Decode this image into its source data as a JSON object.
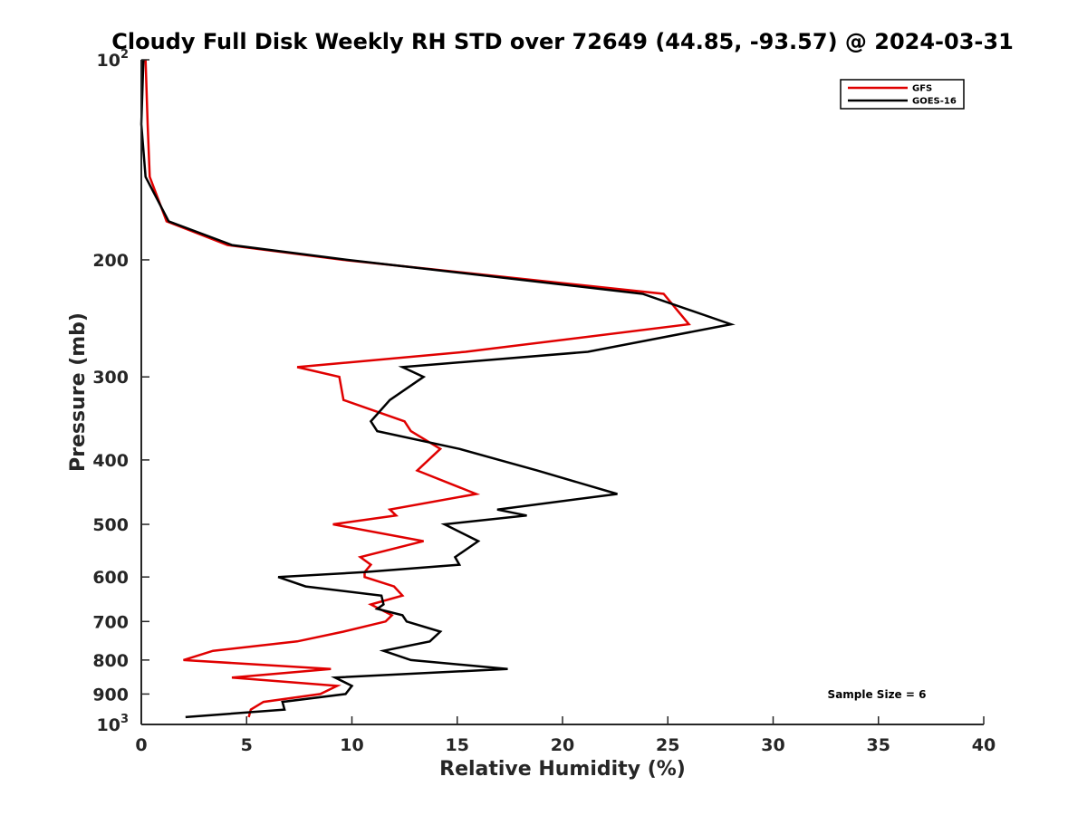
{
  "chart_data": {
    "type": "line",
    "title": "Cloudy Full Disk Weekly RH STD over 72649 (44.85, -93.57) @ 2024-03-31",
    "xlabel": "Relative Humidity (%)",
    "ylabel": "Pressure (mb)",
    "xlim": [
      0,
      40
    ],
    "ylim": [
      100,
      1000
    ],
    "yscale": "log",
    "y_reversed": true,
    "grid": false,
    "legend_position": "top-right",
    "x_ticks": [
      "0",
      "5",
      "10",
      "15",
      "20",
      "25",
      "30",
      "35",
      "40"
    ],
    "y_ticks": [
      {
        "value": 100,
        "base": "10",
        "exp": "2"
      },
      {
        "value": 200,
        "label": "200"
      },
      {
        "value": 300,
        "label": "300"
      },
      {
        "value": 400,
        "label": "400"
      },
      {
        "value": 500,
        "label": "500"
      },
      {
        "value": 600,
        "label": "600"
      },
      {
        "value": 700,
        "label": "700"
      },
      {
        "value": 800,
        "label": "800"
      },
      {
        "value": 900,
        "label": "900"
      },
      {
        "value": 1000,
        "base": "10",
        "exp": "3"
      }
    ],
    "annotation": "Sample Size = 6",
    "series": [
      {
        "name": "GFS",
        "color": "#e00000",
        "points": [
          [
            0.2,
            100
          ],
          [
            0.3,
            125
          ],
          [
            0.4,
            150
          ],
          [
            1.2,
            175
          ],
          [
            4.1,
            190
          ],
          [
            9.6,
            200
          ],
          [
            24.8,
            225
          ],
          [
            26.0,
            250
          ],
          [
            15.4,
            275
          ],
          [
            7.4,
            290
          ],
          [
            9.4,
            300
          ],
          [
            9.6,
            325
          ],
          [
            12.5,
            350
          ],
          [
            12.8,
            362
          ],
          [
            14.2,
            385
          ],
          [
            13.1,
            415
          ],
          [
            15.9,
            450
          ],
          [
            11.8,
            475
          ],
          [
            12.1,
            485
          ],
          [
            9.1,
            500
          ],
          [
            13.4,
            530
          ],
          [
            10.4,
            560
          ],
          [
            10.9,
            575
          ],
          [
            10.6,
            590
          ],
          [
            10.6,
            600
          ],
          [
            12.0,
            620
          ],
          [
            12.4,
            640
          ],
          [
            10.9,
            660
          ],
          [
            11.3,
            670
          ],
          [
            11.9,
            685
          ],
          [
            11.6,
            700
          ],
          [
            9.6,
            725
          ],
          [
            7.4,
            750
          ],
          [
            3.4,
            775
          ],
          [
            2.0,
            800
          ],
          [
            9.0,
            825
          ],
          [
            4.3,
            850
          ],
          [
            9.3,
            875
          ],
          [
            8.5,
            900
          ],
          [
            5.8,
            925
          ],
          [
            5.2,
            950
          ],
          [
            5.1,
            975
          ]
        ]
      },
      {
        "name": "GOES-16",
        "color": "#000000",
        "points": [
          [
            0.1,
            100
          ],
          [
            0.0,
            125
          ],
          [
            0.2,
            150
          ],
          [
            1.3,
            175
          ],
          [
            4.3,
            190
          ],
          [
            9.8,
            200
          ],
          [
            23.8,
            225
          ],
          [
            28.0,
            250
          ],
          [
            21.2,
            275
          ],
          [
            12.4,
            290
          ],
          [
            13.4,
            300
          ],
          [
            11.8,
            325
          ],
          [
            10.9,
            350
          ],
          [
            11.2,
            362
          ],
          [
            15.1,
            385
          ],
          [
            18.8,
            415
          ],
          [
            22.6,
            450
          ],
          [
            16.9,
            475
          ],
          [
            18.3,
            485
          ],
          [
            14.4,
            500
          ],
          [
            16.0,
            530
          ],
          [
            14.9,
            560
          ],
          [
            15.1,
            575
          ],
          [
            10.6,
            590
          ],
          [
            6.5,
            600
          ],
          [
            7.8,
            620
          ],
          [
            11.4,
            640
          ],
          [
            11.5,
            660
          ],
          [
            11.2,
            670
          ],
          [
            12.4,
            685
          ],
          [
            12.6,
            700
          ],
          [
            14.2,
            725
          ],
          [
            13.7,
            750
          ],
          [
            11.5,
            775
          ],
          [
            12.8,
            800
          ],
          [
            17.4,
            825
          ],
          [
            9.2,
            850
          ],
          [
            10.0,
            875
          ],
          [
            9.7,
            900
          ],
          [
            6.7,
            925
          ],
          [
            6.8,
            950
          ],
          [
            2.1,
            975
          ]
        ]
      }
    ]
  }
}
